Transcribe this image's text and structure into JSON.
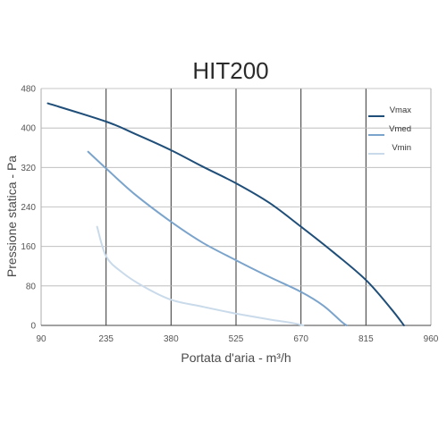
{
  "chart_data": {
    "type": "line",
    "title": "HIT200",
    "xlabel": "Portata d'aria - m³/h",
    "ylabel": "Pressione statica - Pa",
    "xlim": [
      90,
      960
    ],
    "ylim": [
      0,
      480
    ],
    "xticks": [
      90,
      235,
      380,
      525,
      670,
      815,
      960
    ],
    "yticks": [
      0,
      80,
      160,
      240,
      320,
      400,
      480
    ],
    "grid": true,
    "legend_position": "top-right",
    "series": [
      {
        "name": "Vmax",
        "color": "#1f4e79",
        "points": [
          [
            105,
            450
          ],
          [
            235,
            413
          ],
          [
            300,
            388
          ],
          [
            380,
            355
          ],
          [
            450,
            322
          ],
          [
            525,
            288
          ],
          [
            600,
            248
          ],
          [
            670,
            200
          ],
          [
            740,
            150
          ],
          [
            815,
            92
          ],
          [
            870,
            35
          ],
          [
            900,
            0
          ]
        ]
      },
      {
        "name": "Vmed",
        "color": "#7ba4cc",
        "points": [
          [
            195,
            352
          ],
          [
            235,
            318
          ],
          [
            300,
            265
          ],
          [
            380,
            210
          ],
          [
            450,
            168
          ],
          [
            525,
            132
          ],
          [
            600,
            98
          ],
          [
            670,
            68
          ],
          [
            720,
            40
          ],
          [
            760,
            8
          ],
          [
            772,
            0
          ]
        ]
      },
      {
        "name": "Vmin",
        "color": "#c9daea",
        "points": [
          [
            215,
            200
          ],
          [
            235,
            140
          ],
          [
            270,
            108
          ],
          [
            320,
            78
          ],
          [
            380,
            52
          ],
          [
            450,
            38
          ],
          [
            525,
            24
          ],
          [
            600,
            12
          ],
          [
            650,
            5
          ],
          [
            675,
            0
          ]
        ]
      }
    ]
  }
}
